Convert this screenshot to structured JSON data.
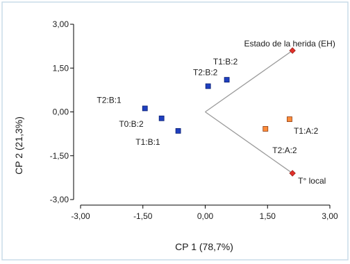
{
  "chart_data": {
    "type": "scatter",
    "xlabel": "CP 1 (78,7%)",
    "ylabel": "CP 2 (21,3%)",
    "xlim": [
      -3.0,
      3.0
    ],
    "ylim": [
      -3.0,
      3.0
    ],
    "x_ticks": [
      "-3,00",
      "-1,50",
      "0,00",
      "1,50",
      "3,00"
    ],
    "y_ticks": [
      "3,00",
      "1,50",
      "0,00",
      "-1,50",
      "-3,00"
    ],
    "grid": false,
    "colors": {
      "group_b": "#1f3fbf",
      "group_a": "#ff8c3a",
      "vector_marker": "#e0302a",
      "vector_line": "#9a9a9a",
      "frame": "#c9dbe9"
    },
    "points": [
      {
        "label": "T2:B:1",
        "x": -1.45,
        "y": 0.12,
        "group": "B"
      },
      {
        "label": "T0:B:2",
        "x": -1.05,
        "y": -0.22,
        "group": "B"
      },
      {
        "label": "T1:B:1",
        "x": -0.65,
        "y": -0.65,
        "group": "B"
      },
      {
        "label": "T2:B:2",
        "x": 0.07,
        "y": 0.88,
        "group": "B"
      },
      {
        "label": "T1:B:2",
        "x": 0.52,
        "y": 1.1,
        "group": "B"
      },
      {
        "label": "T2:A:2",
        "x": 1.45,
        "y": -0.58,
        "group": "A"
      },
      {
        "label": "T1:A:2",
        "x": 2.03,
        "y": -0.25,
        "group": "A"
      }
    ],
    "vectors": [
      {
        "label": "Estado de la herida (EH)",
        "x": 2.1,
        "y": 2.1
      },
      {
        "label": "T° local",
        "x": 2.1,
        "y": -2.1
      }
    ]
  }
}
